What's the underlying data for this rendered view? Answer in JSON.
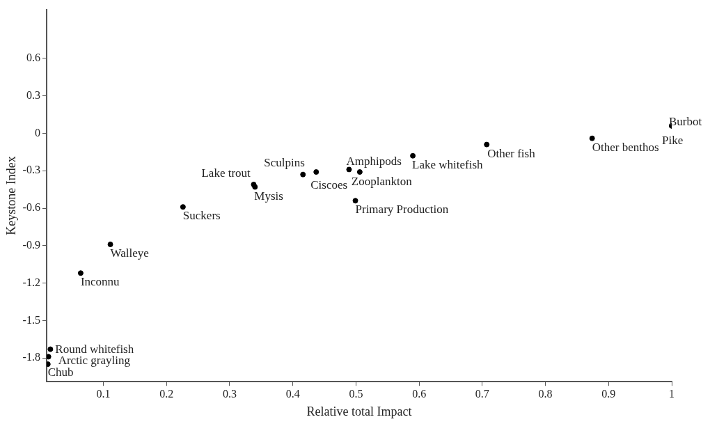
{
  "chart_data": {
    "type": "scatter",
    "xlabel": "Relative total Impact",
    "ylabel": "Keystone Index",
    "xlim": [
      0.01,
      1
    ],
    "xticks": [
      0.1,
      0.2,
      0.3,
      0.4,
      0.5,
      0.6,
      0.7,
      0.8,
      0.9,
      1
    ],
    "ylim": [
      -1.99,
      0.99
    ],
    "yticks": [
      -1.8,
      -1.5,
      -1.2,
      -0.9,
      -0.6,
      -0.3,
      0,
      0.3,
      0.6
    ],
    "grid": false,
    "legend": false,
    "marker": "circle",
    "series": [
      {
        "color": "#000000",
        "x": [
          1.0,
          1.0,
          0.874,
          0.707,
          0.59,
          0.489,
          0.506,
          0.437,
          0.416,
          0.338,
          0.34,
          0.499,
          0.226,
          0.111,
          0.064,
          0.016,
          0.013,
          0.012
        ],
        "values": [
          0.06,
          0.06,
          -0.04,
          -0.09,
          -0.18,
          -0.29,
          -0.31,
          -0.31,
          -0.33,
          -0.41,
          -0.43,
          -0.54,
          -0.59,
          -0.89,
          -1.12,
          -1.73,
          -1.79,
          -1.85
        ],
        "value_labels": [
          "Burbot",
          "Pike",
          "Other benthos",
          "Other fish",
          "Lake whitefish",
          "Amphipods",
          "Zooplankton",
          "Sculpins",
          "Ciscoes",
          "Lake trout",
          "Mysis",
          "Primary Production",
          "Suckers",
          "Walleye",
          "Inconnu",
          "Round whitefish",
          "Arctic grayling",
          "Chub"
        ]
      }
    ]
  }
}
